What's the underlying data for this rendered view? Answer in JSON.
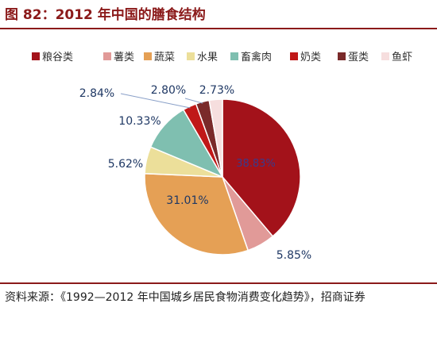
{
  "header": {
    "title": "图 82：2012 年中国的膳食结构"
  },
  "source": {
    "text": "资料来源：《1992—2012 年中国城乡居民食物消费变化趋势》，招商证券"
  },
  "chart_data": {
    "type": "pie",
    "title": "图 82：2012 年中国的膳食结构",
    "legend_position": "top",
    "series": [
      {
        "name": "粮谷类",
        "value": 38.83,
        "label": "38.83%",
        "color": "#a3121a"
      },
      {
        "name": "薯类",
        "value": 5.85,
        "label": "5.85%",
        "color": "#e19a98"
      },
      {
        "name": "蔬菜",
        "value": 31.01,
        "label": "31.01%",
        "color": "#e5a055"
      },
      {
        "name": "水果",
        "value": 5.62,
        "label": "5.62%",
        "color": "#ecdf9a"
      },
      {
        "name": "畜禽肉",
        "value": 10.33,
        "label": "10.33%",
        "color": "#7fbfb0"
      },
      {
        "name": "奶类",
        "value": 2.84,
        "label": "2.84%",
        "color": "#c01818"
      },
      {
        "name": "蛋类",
        "value": 2.8,
        "label": "2.80%",
        "color": "#7a2a2a"
      },
      {
        "name": "鱼虾",
        "value": 2.73,
        "label": "2.73%",
        "color": "#f6dede"
      }
    ]
  }
}
